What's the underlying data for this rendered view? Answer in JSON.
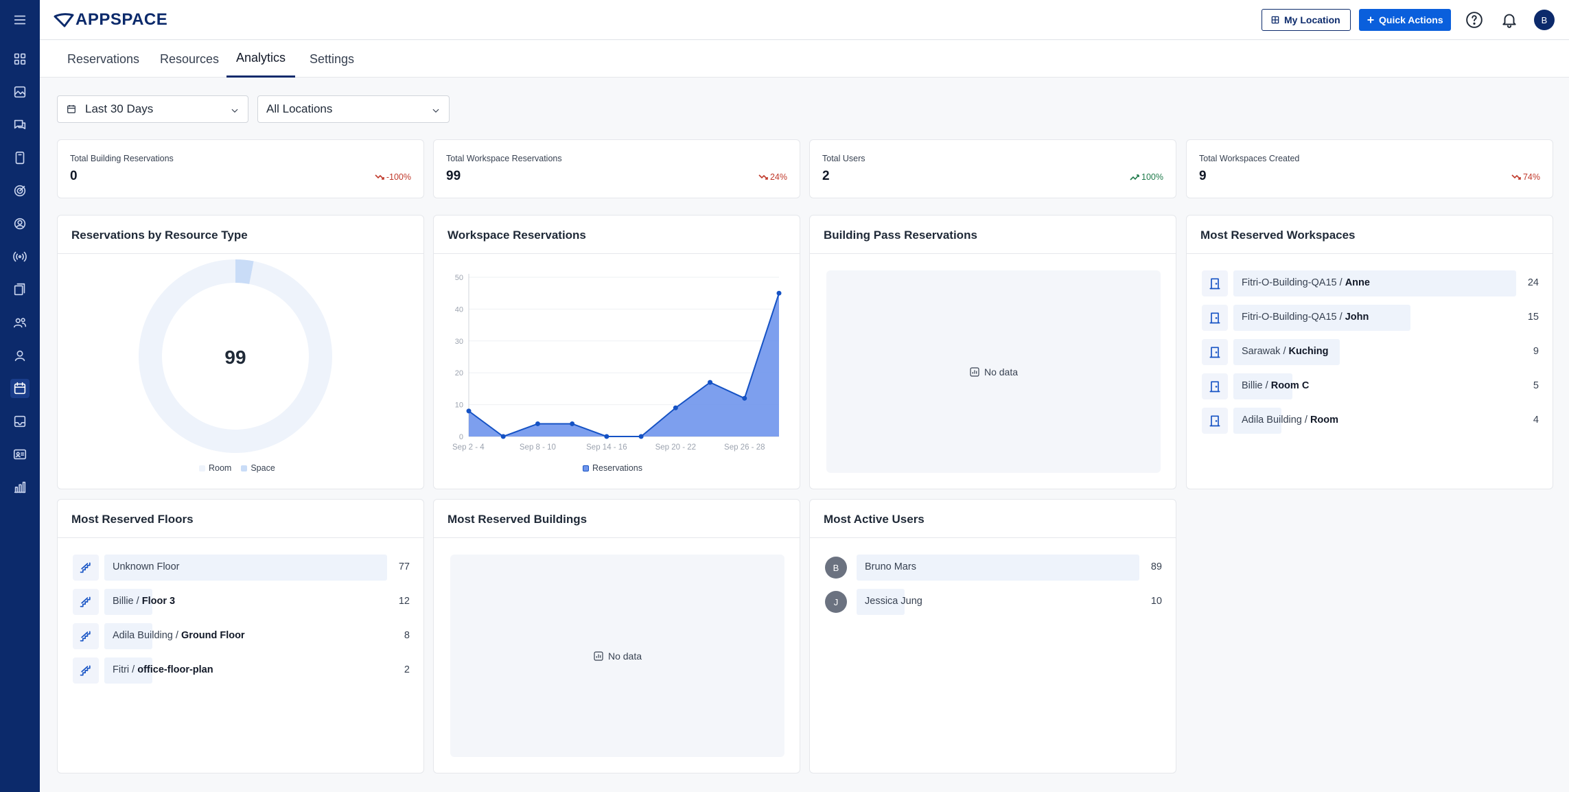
{
  "app": {
    "logo_text": "APPSPACE"
  },
  "header": {
    "my_location": "My Location",
    "quick_actions": "Quick Actions",
    "avatar_initial": "B"
  },
  "tabs": [
    {
      "label": "Reservations"
    },
    {
      "label": "Resources"
    },
    {
      "label": "Analytics",
      "active": true
    },
    {
      "label": "Settings"
    }
  ],
  "filters": {
    "date_range": "Last 30 Days",
    "location": "All Locations"
  },
  "stats": [
    {
      "label": "Total Building Reservations",
      "value": "0",
      "delta": "-100%",
      "trend": "down"
    },
    {
      "label": "Total Workspace Reservations",
      "value": "99",
      "delta": "24%",
      "trend": "down"
    },
    {
      "label": "Total Users",
      "value": "2",
      "delta": "100%",
      "trend": "up"
    },
    {
      "label": "Total Workspaces Created",
      "value": "9",
      "delta": "74%",
      "trend": "down"
    }
  ],
  "resource_type": {
    "title": "Reservations by Resource Type",
    "total": "99",
    "legend": [
      {
        "name": "Room",
        "color": "#eef3fb"
      },
      {
        "name": "Space",
        "color": "#c9dcf7"
      }
    ],
    "chart_data": {
      "type": "pie",
      "categories": [
        "Room",
        "Space"
      ],
      "values": [
        96,
        3
      ]
    }
  },
  "workspace_reservations": {
    "title": "Workspace Reservations",
    "legend": "Reservations",
    "chart_data": {
      "type": "area",
      "x_tick_labels": [
        "Sep 2 - 4",
        "Sep 8 - 10",
        "Sep 14 - 16",
        "Sep 20 - 22",
        "Sep 26 - 28"
      ],
      "y_ticks": [
        0,
        10,
        20,
        30,
        40,
        50
      ],
      "ylim": [
        0,
        50
      ],
      "series": [
        {
          "name": "Reservations",
          "values": [
            8,
            0,
            4,
            4,
            0,
            0,
            9,
            17,
            12,
            45
          ]
        }
      ]
    }
  },
  "building_pass": {
    "title": "Building Pass Reservations",
    "empty_text": "No data"
  },
  "most_reserved_workspaces": {
    "title": "Most Reserved Workspaces",
    "max": 24,
    "items": [
      {
        "prefix": "Fitri-O-Building-QA15 / ",
        "name": "Anne",
        "count": 24
      },
      {
        "prefix": "Fitri-O-Building-QA15 / ",
        "name": "John",
        "count": 15
      },
      {
        "prefix": "Sarawak / ",
        "name": "Kuching",
        "count": 9
      },
      {
        "prefix": "Billie / ",
        "name": "Room C",
        "count": 5
      },
      {
        "prefix": "Adila Building / ",
        "name": "Room",
        "count": 4
      }
    ]
  },
  "most_reserved_floors": {
    "title": "Most Reserved Floors",
    "max": 77,
    "items": [
      {
        "prefix": "Unknown Floor",
        "name": "",
        "count": 77
      },
      {
        "prefix": "Billie / ",
        "name": "Floor 3",
        "count": 12
      },
      {
        "prefix": "Adila Building / ",
        "name": "Ground Floor",
        "count": 8
      },
      {
        "prefix": "Fitri / ",
        "name": "office-floor-plan",
        "count": 2
      }
    ]
  },
  "most_reserved_buildings": {
    "title": "Most Reserved Buildings",
    "empty_text": "No data"
  },
  "most_active_users": {
    "title": "Most Active Users",
    "max": 89,
    "items": [
      {
        "initial": "B",
        "name": "Bruno Mars",
        "count": 89
      },
      {
        "initial": "J",
        "name": "Jessica Jung",
        "count": 10
      }
    ]
  }
}
